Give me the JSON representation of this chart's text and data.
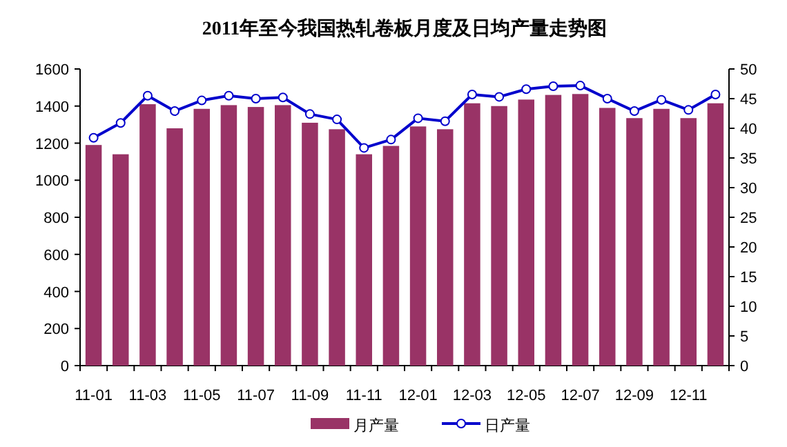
{
  "chart_data": {
    "type": "bar",
    "title": "2011年至今我国热轧卷板月度及日均产量走势图",
    "categories": [
      "11-01",
      null,
      "11-03",
      null,
      "11-05",
      null,
      "11-07",
      null,
      "11-09",
      null,
      "11-11",
      null,
      "12-01",
      null,
      "12-03",
      null,
      "12-05",
      null,
      "12-07",
      null,
      "12-09",
      null,
      "12-11",
      null
    ],
    "series": [
      {
        "name": "月产量",
        "color": "#993366",
        "values": [
          1190,
          1140,
          1410,
          1280,
          1385,
          1405,
          1395,
          1405,
          1310,
          1275,
          1140,
          1185,
          1290,
          1275,
          1415,
          1400,
          1435,
          1460,
          1465,
          1390,
          1335,
          1385,
          1335,
          1415
        ]
      },
      {
        "name": "日产量",
        "type": "line",
        "axis": "y2",
        "marker": "circle",
        "color": "#0000cc",
        "values": [
          38.4,
          40.9,
          45.5,
          42.9,
          44.7,
          45.5,
          45.0,
          45.2,
          42.4,
          41.5,
          36.7,
          38.1,
          41.7,
          41.2,
          45.7,
          45.3,
          46.6,
          47.1,
          47.2,
          45.0,
          42.9,
          44.8,
          43.1,
          45.7
        ]
      }
    ],
    "ylim": [
      0,
      1600
    ],
    "yticks": [
      0,
      200,
      400,
      600,
      800,
      1000,
      1200,
      1400,
      1600
    ],
    "y2lim": [
      0,
      50
    ],
    "y2ticks": [
      0,
      5,
      10,
      15,
      20,
      25,
      30,
      35,
      40,
      45,
      50
    ],
    "legend": "bottom"
  }
}
